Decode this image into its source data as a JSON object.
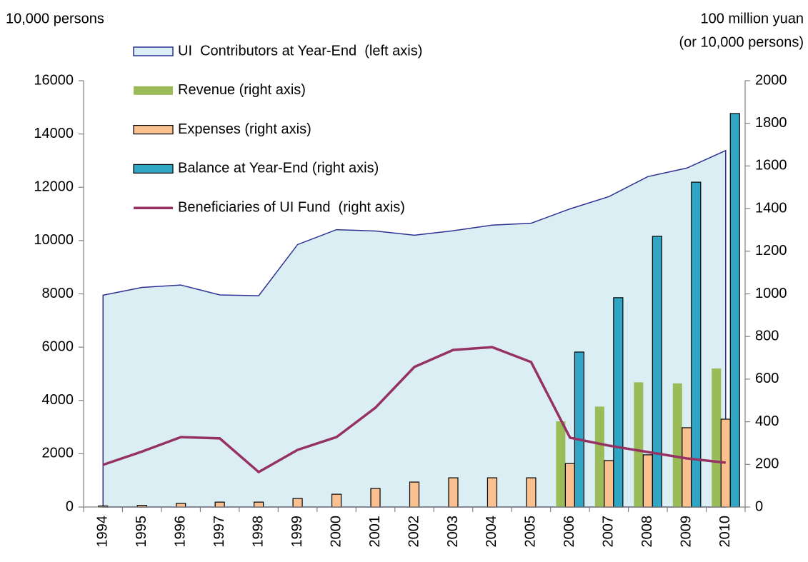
{
  "chart_data": {
    "type": "combo",
    "y_label": "10,000 persons",
    "y2_label": [
      "100 million yuan",
      "(or 10,000 persons)"
    ],
    "categories": [
      "1994",
      "1995",
      "1996",
      "1997",
      "1998",
      "1999",
      "2000",
      "2001",
      "2002",
      "2003",
      "2004",
      "2005",
      "2006",
      "2007",
      "2008",
      "2009",
      "2010"
    ],
    "series": [
      {
        "name": "UI  Contributors at Year-End  (left axis)",
        "type": "area",
        "axis": "y",
        "color": "#dbeef4",
        "stroke": "#2e3192",
        "values": [
          7950,
          8240,
          8330,
          7960,
          7930,
          9850,
          10410,
          10360,
          10200,
          10370,
          10580,
          10650,
          11190,
          11650,
          12400,
          12720,
          13380
        ]
      },
      {
        "name": "Revenue (right axis)",
        "type": "bar",
        "axis": "y2",
        "color": "#9bbb59",
        "values": [
          null,
          null,
          null,
          null,
          null,
          null,
          null,
          null,
          null,
          null,
          null,
          null,
          402,
          471,
          585,
          580,
          650
        ]
      },
      {
        "name": "Expenses (right axis)",
        "type": "bar",
        "axis": "y2",
        "color": "#fac090",
        "values": [
          5,
          8,
          17,
          23,
          23,
          40,
          60,
          87,
          117,
          137,
          137,
          137,
          204,
          218,
          245,
          372,
          412
        ]
      },
      {
        "name": "Balance at Year-End (right axis)",
        "type": "bar",
        "axis": "y2",
        "color": "#31a5c4",
        "values": [
          null,
          null,
          null,
          null,
          null,
          null,
          null,
          null,
          null,
          null,
          null,
          null,
          727,
          982,
          1270,
          1524,
          1846
        ]
      },
      {
        "name": "Beneficiaries of UI Fund  (right axis)",
        "type": "line",
        "axis": "y2",
        "color": "#953163",
        "values": [
          198,
          260,
          328,
          322,
          164,
          268,
          328,
          466,
          657,
          737,
          750,
          680,
          325,
          288,
          258,
          228,
          208
        ]
      }
    ],
    "ylim": [
      0,
      16000
    ],
    "yticks": [
      0,
      2000,
      4000,
      6000,
      8000,
      10000,
      12000,
      14000,
      16000
    ],
    "y2lim": [
      0,
      2000
    ],
    "y2ticks": [
      0,
      200,
      400,
      600,
      800,
      1000,
      1200,
      1400,
      1600,
      1800,
      2000
    ],
    "legend": "top-left"
  }
}
